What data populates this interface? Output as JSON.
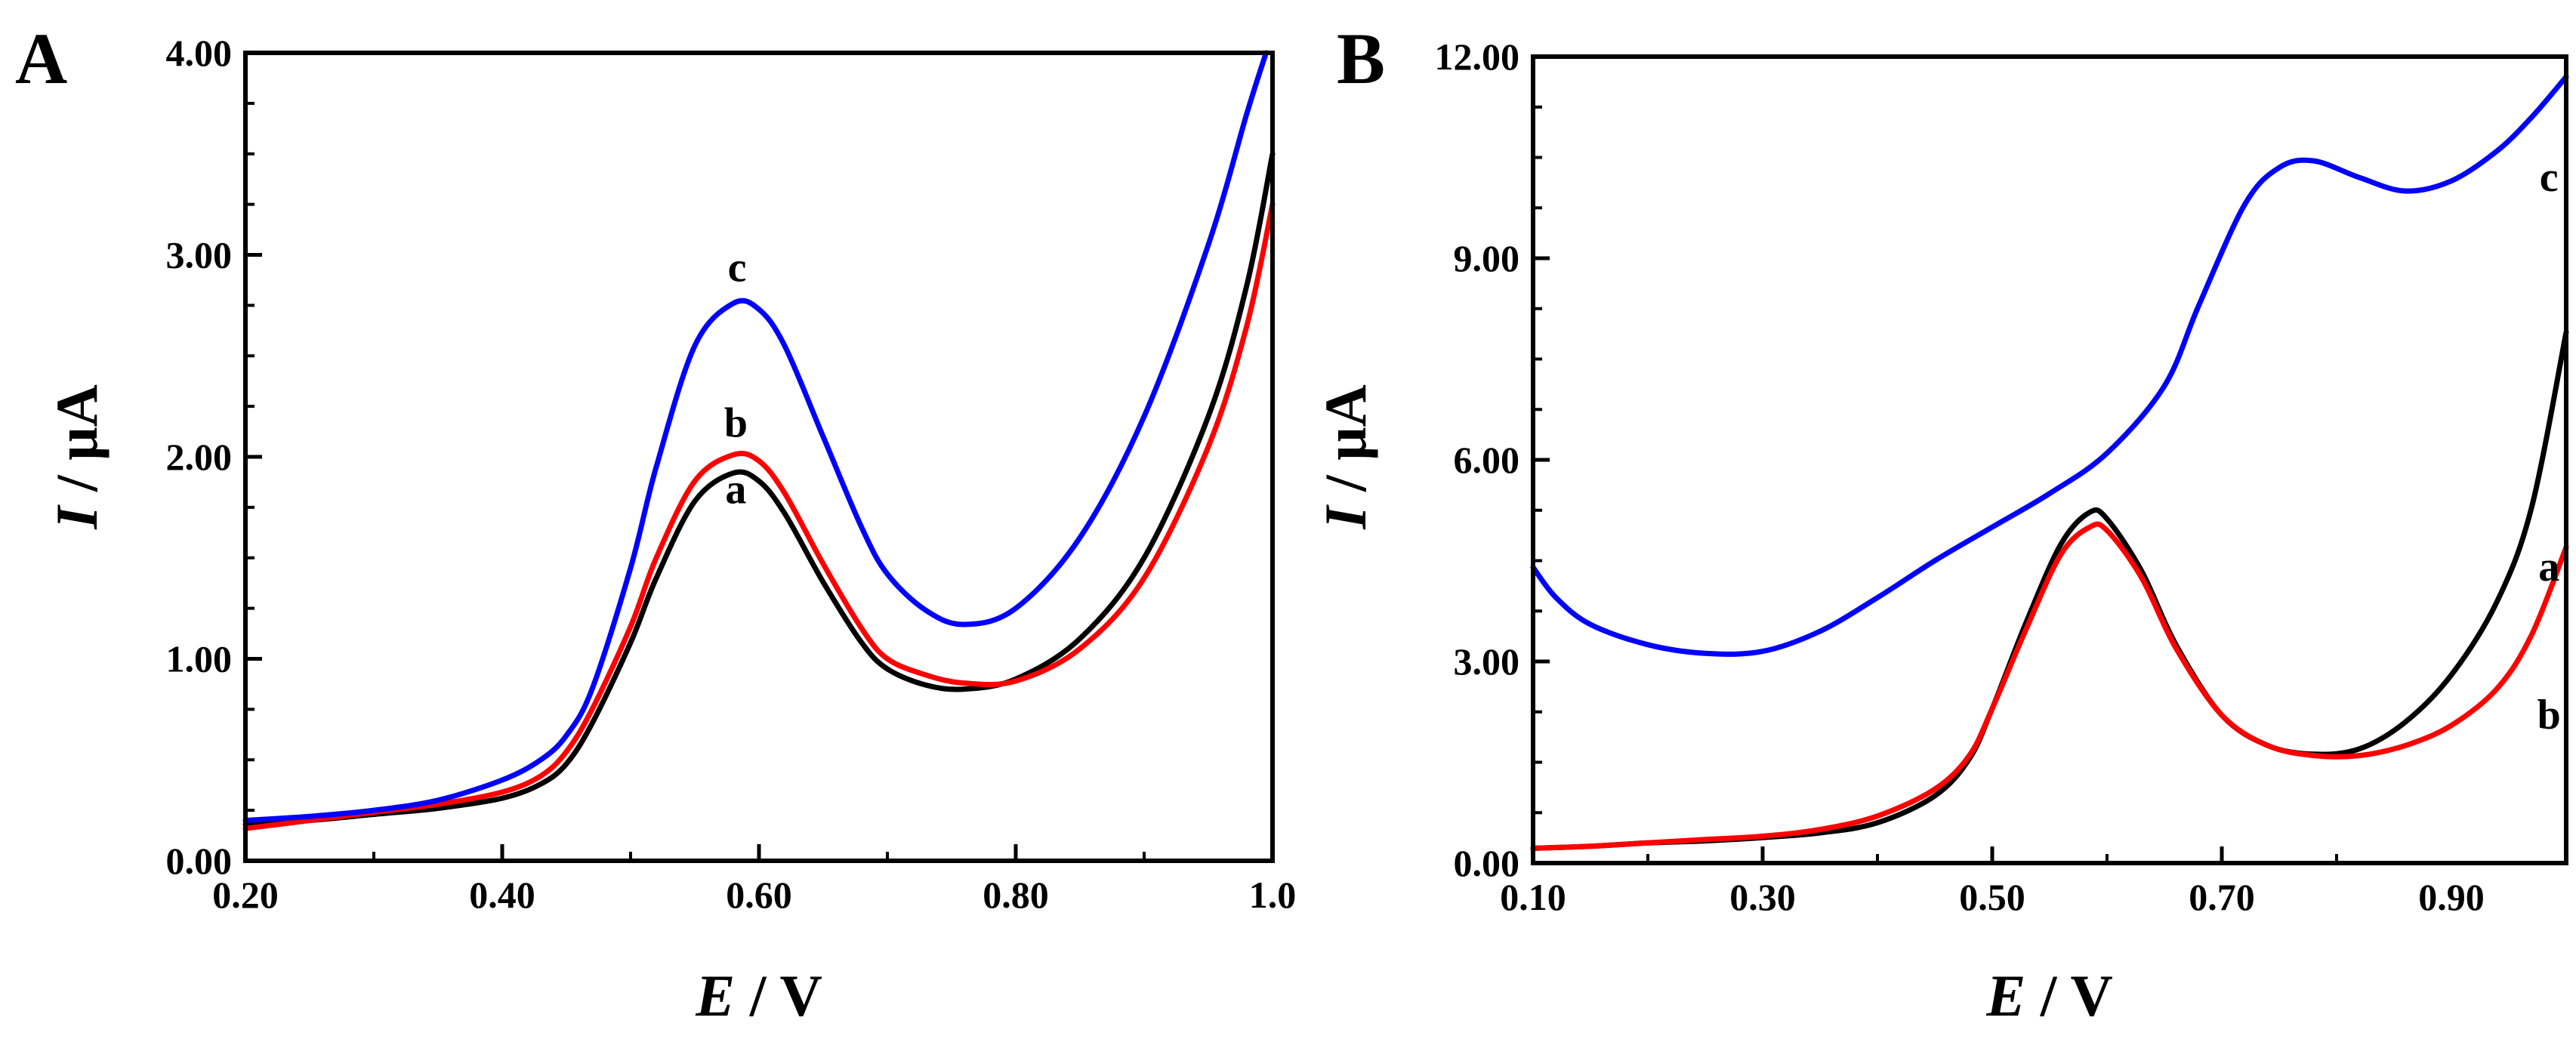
{
  "chart_data": [
    {
      "panel": "A",
      "type": "line",
      "xlabel_italic": "E",
      "xlabel_unit": " / V",
      "ylabel_italic": "I",
      "ylabel_unit": " / μA",
      "xlim": [
        0.2,
        1.0
      ],
      "ylim": [
        0.0,
        4.0
      ],
      "xticks": [
        0.2,
        0.4,
        0.6,
        0.8,
        1.0
      ],
      "xtick_labels": [
        "0.20",
        "0.40",
        "0.60",
        "0.80",
        "1.0"
      ],
      "yticks": [
        0.0,
        1.0,
        2.0,
        3.0,
        4.0
      ],
      "ytick_labels": [
        "0.00",
        "1.00",
        "2.00",
        "3.00",
        "4.00"
      ],
      "series": [
        {
          "name": "a",
          "color": "#000000",
          "label_at": [
            0.582,
            1.77
          ],
          "points": [
            [
              0.2,
              0.18
            ],
            [
              0.25,
              0.2
            ],
            [
              0.3,
              0.23
            ],
            [
              0.35,
              0.26
            ],
            [
              0.4,
              0.31
            ],
            [
              0.43,
              0.38
            ],
            [
              0.45,
              0.48
            ],
            [
              0.47,
              0.68
            ],
            [
              0.5,
              1.08
            ],
            [
              0.52,
              1.4
            ],
            [
              0.55,
              1.78
            ],
            [
              0.58,
              1.92
            ],
            [
              0.6,
              1.88
            ],
            [
              0.62,
              1.72
            ],
            [
              0.65,
              1.38
            ],
            [
              0.68,
              1.08
            ],
            [
              0.7,
              0.95
            ],
            [
              0.73,
              0.87
            ],
            [
              0.76,
              0.85
            ],
            [
              0.8,
              0.9
            ],
            [
              0.85,
              1.1
            ],
            [
              0.9,
              1.5
            ],
            [
              0.95,
              2.2
            ],
            [
              0.98,
              2.85
            ],
            [
              1.0,
              3.5
            ]
          ]
        },
        {
          "name": "b",
          "color": "#ff0000",
          "label_at": [
            0.582,
            2.1
          ],
          "points": [
            [
              0.2,
              0.16
            ],
            [
              0.25,
              0.2
            ],
            [
              0.3,
              0.24
            ],
            [
              0.35,
              0.28
            ],
            [
              0.4,
              0.34
            ],
            [
              0.43,
              0.42
            ],
            [
              0.45,
              0.54
            ],
            [
              0.47,
              0.75
            ],
            [
              0.5,
              1.16
            ],
            [
              0.52,
              1.5
            ],
            [
              0.55,
              1.88
            ],
            [
              0.58,
              2.01
            ],
            [
              0.6,
              1.98
            ],
            [
              0.62,
              1.82
            ],
            [
              0.65,
              1.47
            ],
            [
              0.68,
              1.15
            ],
            [
              0.7,
              1.0
            ],
            [
              0.73,
              0.92
            ],
            [
              0.76,
              0.88
            ],
            [
              0.8,
              0.89
            ],
            [
              0.85,
              1.05
            ],
            [
              0.9,
              1.4
            ],
            [
              0.95,
              2.05
            ],
            [
              0.98,
              2.65
            ],
            [
              1.0,
              3.25
            ]
          ]
        },
        {
          "name": "c",
          "color": "#0000ff",
          "label_at": [
            0.583,
            2.87
          ],
          "points": [
            [
              0.2,
              0.2
            ],
            [
              0.25,
              0.22
            ],
            [
              0.3,
              0.25
            ],
            [
              0.35,
              0.3
            ],
            [
              0.4,
              0.4
            ],
            [
              0.43,
              0.5
            ],
            [
              0.45,
              0.62
            ],
            [
              0.47,
              0.85
            ],
            [
              0.5,
              1.45
            ],
            [
              0.52,
              1.95
            ],
            [
              0.55,
              2.55
            ],
            [
              0.58,
              2.76
            ],
            [
              0.6,
              2.73
            ],
            [
              0.62,
              2.55
            ],
            [
              0.65,
              2.1
            ],
            [
              0.68,
              1.65
            ],
            [
              0.7,
              1.42
            ],
            [
              0.73,
              1.24
            ],
            [
              0.76,
              1.17
            ],
            [
              0.8,
              1.25
            ],
            [
              0.85,
              1.6
            ],
            [
              0.9,
              2.2
            ],
            [
              0.95,
              3.05
            ],
            [
              0.98,
              3.7
            ],
            [
              0.995,
              4.0
            ]
          ]
        }
      ]
    },
    {
      "panel": "B",
      "type": "line",
      "xlabel_italic": "E",
      "xlabel_unit": " / V",
      "ylabel_italic": "I",
      "ylabel_unit": " / μA",
      "xlim": [
        0.1,
        1.0
      ],
      "ylim": [
        0.0,
        12.0
      ],
      "xticks": [
        0.1,
        0.3,
        0.5,
        0.7,
        0.9
      ],
      "xtick_labels": [
        "0.10",
        "0.30",
        "0.50",
        "0.70",
        "0.90"
      ],
      "yticks": [
        0.0,
        3.0,
        6.0,
        9.0,
        12.0
      ],
      "ytick_labels": [
        "0.00",
        "3.00",
        "6.00",
        "9.00",
        "12.00"
      ],
      "series": [
        {
          "name": "a",
          "color": "#000000",
          "label_at": [
            0.985,
            4.2
          ],
          "points": [
            [
              0.1,
              0.22
            ],
            [
              0.15,
              0.25
            ],
            [
              0.2,
              0.3
            ],
            [
              0.25,
              0.33
            ],
            [
              0.3,
              0.38
            ],
            [
              0.35,
              0.45
            ],
            [
              0.4,
              0.6
            ],
            [
              0.45,
              1.0
            ],
            [
              0.48,
              1.55
            ],
            [
              0.5,
              2.3
            ],
            [
              0.53,
              3.6
            ],
            [
              0.56,
              4.75
            ],
            [
              0.585,
              5.22
            ],
            [
              0.6,
              5.12
            ],
            [
              0.63,
              4.35
            ],
            [
              0.66,
              3.25
            ],
            [
              0.7,
              2.2
            ],
            [
              0.74,
              1.75
            ],
            [
              0.78,
              1.62
            ],
            [
              0.82,
              1.7
            ],
            [
              0.86,
              2.1
            ],
            [
              0.9,
              2.8
            ],
            [
              0.94,
              3.9
            ],
            [
              0.97,
              5.3
            ],
            [
              1.0,
              7.9
            ]
          ]
        },
        {
          "name": "b",
          "color": "#ff0000",
          "label_at": [
            0.985,
            2.0
          ],
          "points": [
            [
              0.1,
              0.22
            ],
            [
              0.15,
              0.25
            ],
            [
              0.2,
              0.3
            ],
            [
              0.25,
              0.35
            ],
            [
              0.3,
              0.4
            ],
            [
              0.35,
              0.5
            ],
            [
              0.4,
              0.7
            ],
            [
              0.45,
              1.1
            ],
            [
              0.48,
              1.6
            ],
            [
              0.5,
              2.3
            ],
            [
              0.53,
              3.5
            ],
            [
              0.56,
              4.6
            ],
            [
              0.585,
              5.0
            ],
            [
              0.6,
              4.95
            ],
            [
              0.63,
              4.25
            ],
            [
              0.66,
              3.2
            ],
            [
              0.7,
              2.2
            ],
            [
              0.74,
              1.75
            ],
            [
              0.78,
              1.6
            ],
            [
              0.82,
              1.6
            ],
            [
              0.86,
              1.75
            ],
            [
              0.9,
              2.05
            ],
            [
              0.94,
              2.6
            ],
            [
              0.97,
              3.4
            ],
            [
              1.0,
              4.7
            ]
          ]
        },
        {
          "name": "c",
          "color": "#0000ff",
          "label_at": [
            0.985,
            10.0
          ],
          "points": [
            [
              0.1,
              4.4
            ],
            [
              0.12,
              3.95
            ],
            [
              0.15,
              3.55
            ],
            [
              0.2,
              3.25
            ],
            [
              0.25,
              3.12
            ],
            [
              0.3,
              3.15
            ],
            [
              0.35,
              3.45
            ],
            [
              0.4,
              3.95
            ],
            [
              0.45,
              4.5
            ],
            [
              0.5,
              5.0
            ],
            [
              0.55,
              5.5
            ],
            [
              0.6,
              6.1
            ],
            [
              0.65,
              7.1
            ],
            [
              0.68,
              8.3
            ],
            [
              0.72,
              9.8
            ],
            [
              0.75,
              10.35
            ],
            [
              0.78,
              10.45
            ],
            [
              0.82,
              10.2
            ],
            [
              0.86,
              10.0
            ],
            [
              0.9,
              10.15
            ],
            [
              0.94,
              10.6
            ],
            [
              0.97,
              11.1
            ],
            [
              1.0,
              11.7
            ]
          ]
        }
      ]
    }
  ]
}
